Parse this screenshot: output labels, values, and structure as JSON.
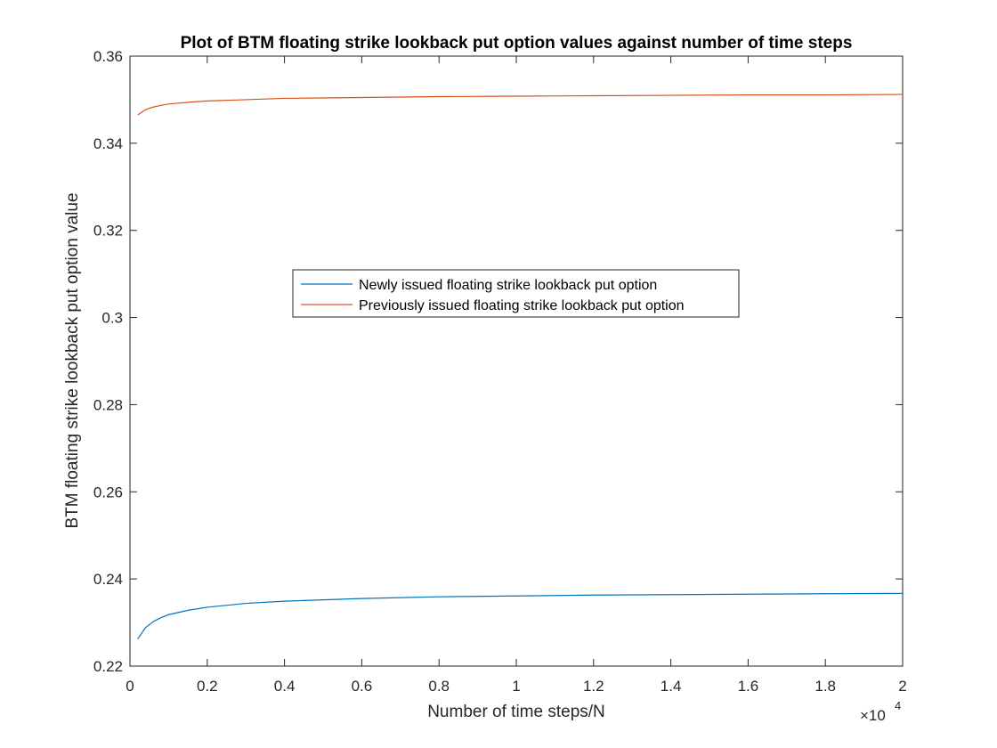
{
  "chart_data": {
    "type": "line",
    "title": "Plot of BTM floating strike lookback put option values against number of time steps",
    "xlabel": "Number of time steps/N",
    "ylabel": "BTM floating strike lookback put option value",
    "x_exponent_label": "×10",
    "x_exponent_power": "4",
    "xlim": [
      0,
      20000
    ],
    "ylim": [
      0.22,
      0.36
    ],
    "x_ticks": [
      0,
      2000,
      4000,
      6000,
      8000,
      10000,
      12000,
      14000,
      16000,
      18000,
      20000
    ],
    "x_tick_labels": [
      "0",
      "0.2",
      "0.4",
      "0.6",
      "0.8",
      "1",
      "1.2",
      "1.4",
      "1.6",
      "1.8",
      "2"
    ],
    "y_ticks": [
      0.22,
      0.24,
      0.26,
      0.28,
      0.3,
      0.32,
      0.34,
      0.36
    ],
    "y_tick_labels": [
      "0.22",
      "0.24",
      "0.26",
      "0.28",
      "0.3",
      "0.32",
      "0.34",
      "0.36"
    ],
    "grid": false,
    "legend_position": "center",
    "x": [
      200,
      400,
      600,
      800,
      1000,
      1500,
      2000,
      3000,
      4000,
      5000,
      6000,
      8000,
      10000,
      12000,
      14000,
      16000,
      18000,
      20000
    ],
    "series": [
      {
        "name": "Newly issued floating strike lookback put option",
        "color": "#0072BD",
        "values": [
          0.2262,
          0.2288,
          0.2302,
          0.2311,
          0.2318,
          0.2328,
          0.2335,
          0.2344,
          0.2349,
          0.2352,
          0.2355,
          0.2359,
          0.2361,
          0.2363,
          0.2364,
          0.2365,
          0.2366,
          0.2367
        ]
      },
      {
        "name": "Previously issued floating strike lookback put option",
        "color": "#D95319",
        "values": [
          0.3465,
          0.3477,
          0.3483,
          0.3487,
          0.349,
          0.3494,
          0.3497,
          0.35,
          0.3503,
          0.3504,
          0.3505,
          0.3507,
          0.3508,
          0.3509,
          0.351,
          0.3511,
          0.3511,
          0.3512
        ]
      }
    ]
  }
}
